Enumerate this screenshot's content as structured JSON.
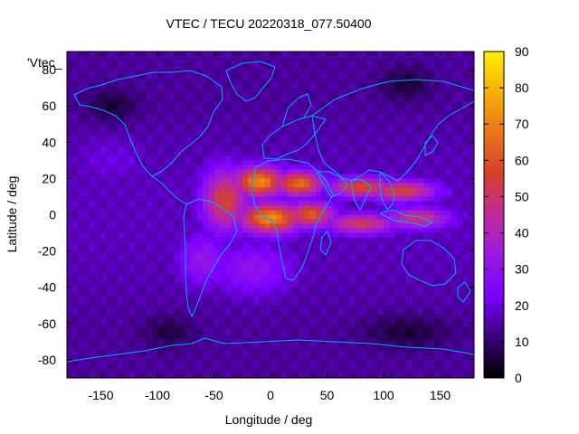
{
  "chart_data": {
    "type": "heatmap",
    "title": "VTEC / TECU 20220318_077.50400",
    "xlabel": "Longitude / deg",
    "ylabel": "Latitude / deg",
    "xlim": [
      -180,
      180
    ],
    "ylim": [
      -90,
      90
    ],
    "x_ticks": [
      -150,
      -100,
      -50,
      0,
      50,
      100,
      150
    ],
    "y_ticks": [
      -80,
      -60,
      -40,
      -20,
      0,
      20,
      40,
      60,
      80
    ],
    "color_scale": {
      "min": 0,
      "max": 90,
      "ticks": [
        0,
        10,
        20,
        30,
        40,
        50,
        60,
        70,
        80,
        90
      ],
      "palette": [
        "#000000",
        "#3a0078",
        "#7a00ff",
        "#9a1ae0",
        "#c02a9a",
        "#d6402a",
        "#e8741a",
        "#f5b00a",
        "#ffee00"
      ]
    },
    "legend_key": "'Vtec_",
    "coastline_color": "#00aaff",
    "background_vtec": 14,
    "features": [
      {
        "lon": -10,
        "lat": 18,
        "vtec": 72,
        "slon": 16,
        "slat": 6
      },
      {
        "lon": 25,
        "lat": 17,
        "vtec": 66,
        "slon": 15,
        "slat": 5
      },
      {
        "lon": 0,
        "lat": -2,
        "vtec": 72,
        "slon": 20,
        "slat": 6
      },
      {
        "lon": 35,
        "lat": 0,
        "vtec": 62,
        "slon": 15,
        "slat": 5
      },
      {
        "lon": -40,
        "lat": 8,
        "vtec": 56,
        "slon": 14,
        "slat": 12
      },
      {
        "lon": 80,
        "lat": 15,
        "vtec": 58,
        "slon": 20,
        "slat": 4
      },
      {
        "lon": 115,
        "lat": 13,
        "vtec": 56,
        "slon": 22,
        "slat": 4
      },
      {
        "lon": 80,
        "lat": -5,
        "vtec": 52,
        "slon": 22,
        "slat": 4
      },
      {
        "lon": 130,
        "lat": -2,
        "vtec": 50,
        "slon": 20,
        "slat": 4
      },
      {
        "lon": -15,
        "lat": -30,
        "vtec": 30,
        "slon": 25,
        "slat": 10
      },
      {
        "lon": -140,
        "lat": 30,
        "vtec": 20,
        "slon": 25,
        "slat": 10
      },
      {
        "lon": -60,
        "lat": -25,
        "vtec": 32,
        "slon": 15,
        "slat": 10
      }
    ],
    "dark_regions": [
      {
        "lon": -140,
        "lat": 60,
        "vtec": 5,
        "slon": 15,
        "slat": 6
      },
      {
        "lon": 120,
        "lat": 72,
        "vtec": 5,
        "slon": 15,
        "slat": 6
      },
      {
        "lon": 120,
        "lat": -65,
        "vtec": 5,
        "slon": 25,
        "slat": 6
      },
      {
        "lon": -90,
        "lat": -65,
        "vtec": 6,
        "slon": 15,
        "slat": 6
      }
    ]
  }
}
